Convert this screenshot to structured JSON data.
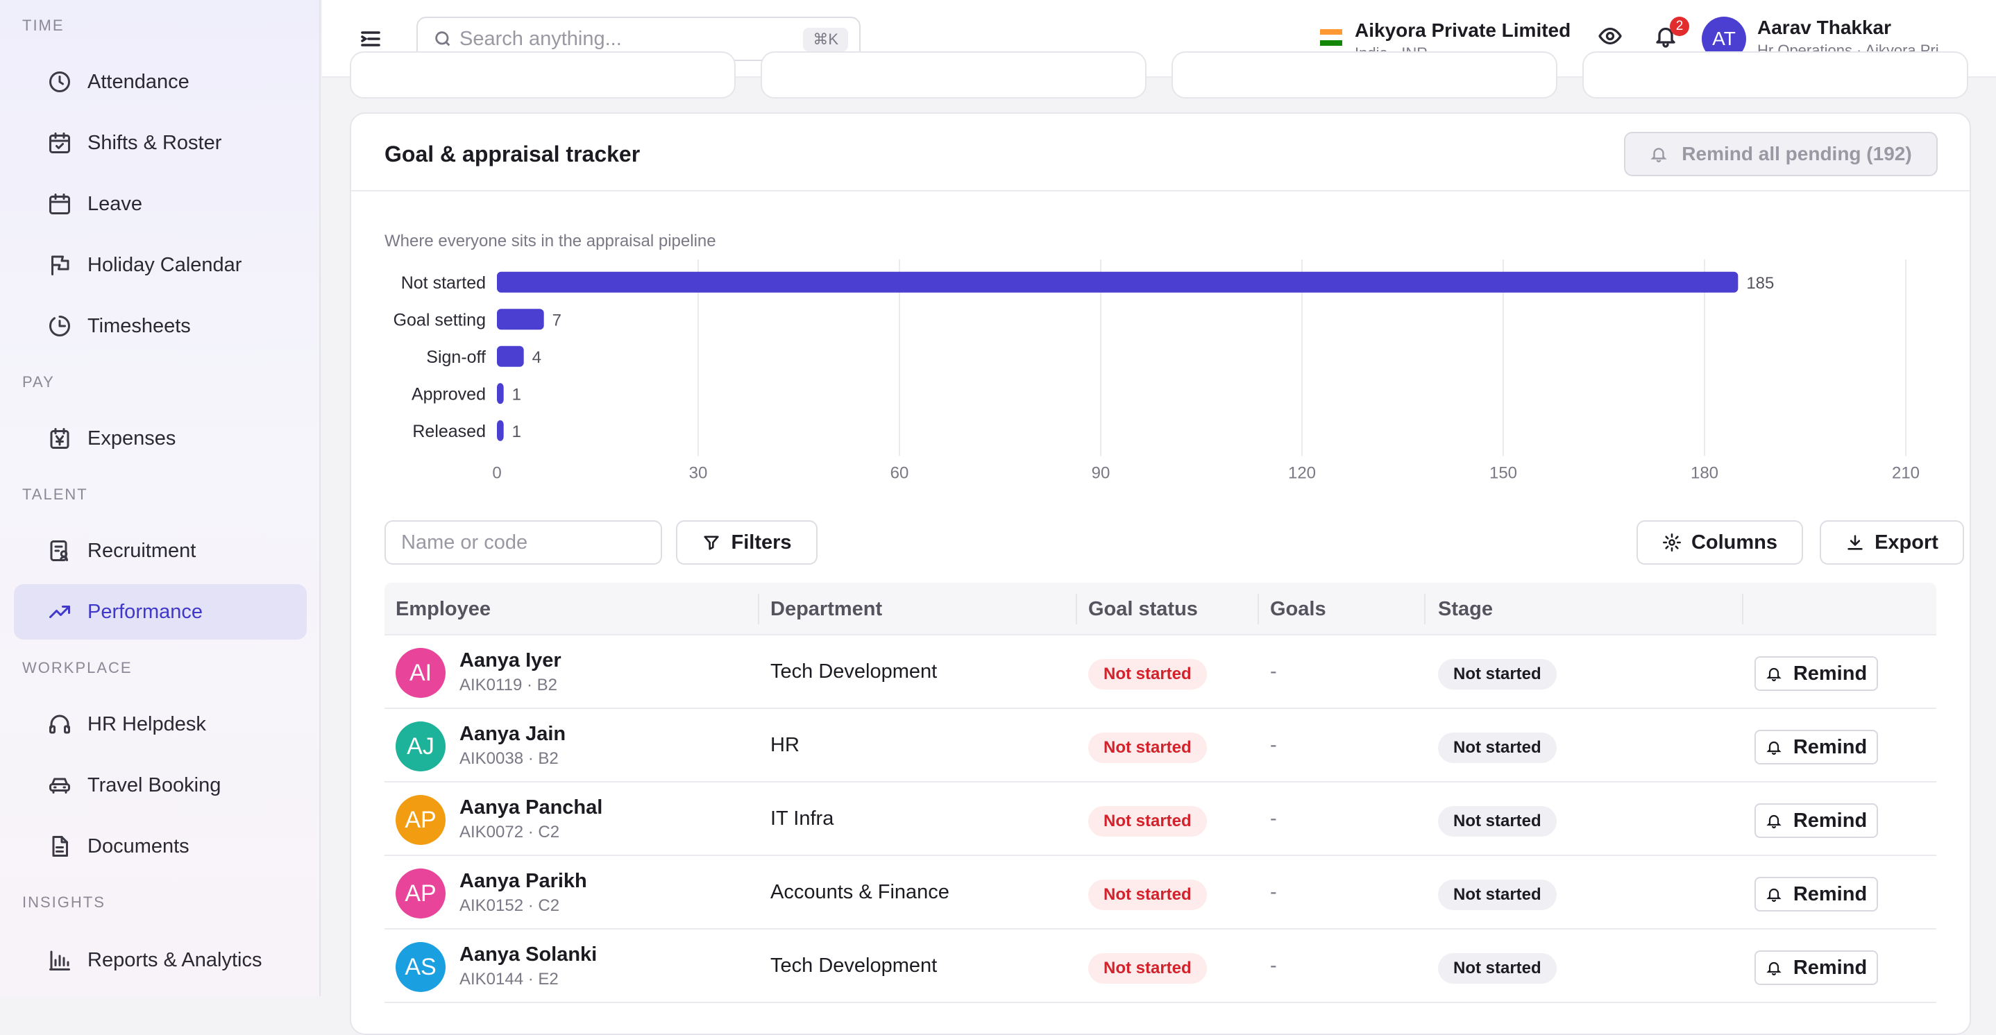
{
  "sidebar": {
    "sections": [
      {
        "label": "TIME"
      },
      {
        "label": "PAY"
      },
      {
        "label": "TALENT"
      },
      {
        "label": "WORKPLACE"
      },
      {
        "label": "INSIGHTS"
      }
    ],
    "items": [
      {
        "label": "Attendance",
        "icon": "clock-icon"
      },
      {
        "label": "Shifts & Roster",
        "icon": "calendar-check-icon"
      },
      {
        "label": "Leave",
        "icon": "calendar-icon"
      },
      {
        "label": "Holiday Calendar",
        "icon": "flag-icon"
      },
      {
        "label": "Timesheets",
        "icon": "timer-icon"
      },
      {
        "label": "Expenses",
        "icon": "receipt-icon"
      },
      {
        "label": "Recruitment",
        "icon": "clipboard-user-icon"
      },
      {
        "label": "Performance",
        "icon": "trending-up-icon",
        "active": true
      },
      {
        "label": "HR Helpdesk",
        "icon": "headset-icon"
      },
      {
        "label": "Travel Booking",
        "icon": "car-icon"
      },
      {
        "label": "Documents",
        "icon": "document-icon"
      },
      {
        "label": "Reports & Analytics",
        "icon": "bar-chart-icon"
      }
    ]
  },
  "header": {
    "search_placeholder": "Search anything...",
    "search_shortcut": "⌘K",
    "company_name": "Aikyora Private Limited",
    "company_sub": "India · INR",
    "notification_count": "2",
    "user_initials": "AT",
    "user_name": "Aarav Thakkar",
    "user_sub": "Hr Operations · Aikyora Pri..."
  },
  "panel": {
    "title": "Goal & appraisal tracker",
    "remind_all_label": "Remind all pending (192)",
    "chart_caption": "Where everyone sits in the appraisal pipeline",
    "name_placeholder": "Name or code",
    "filters_label": "Filters",
    "columns_label": "Columns",
    "export_label": "Export"
  },
  "colors": {
    "accent": "#4a3fd0",
    "bar": "#4a3fd0"
  },
  "chart_data": {
    "type": "bar",
    "orientation": "horizontal",
    "categories": [
      "Not started",
      "Goal setting",
      "Sign-off",
      "Approved",
      "Released"
    ],
    "values": [
      185,
      7,
      4,
      1,
      1
    ],
    "xlim": [
      0,
      210
    ],
    "xticks": [
      0,
      30,
      60,
      90,
      120,
      150,
      180,
      210
    ],
    "grid": true
  },
  "table": {
    "headers": [
      "Employee",
      "Department",
      "Goal status",
      "Goals",
      "Stage"
    ],
    "rows": [
      {
        "initials": "AI",
        "avatar_color": "#e8449a",
        "name": "Aanya Iyer",
        "code": "AIK0119 · B2",
        "department": "Tech Development",
        "goal_status": "Not started",
        "goals": "-",
        "stage": "Not started",
        "action": "Remind"
      },
      {
        "initials": "AJ",
        "avatar_color": "#1cb39a",
        "name": "Aanya Jain",
        "code": "AIK0038 · B2",
        "department": "HR",
        "goal_status": "Not started",
        "goals": "-",
        "stage": "Not started",
        "action": "Remind"
      },
      {
        "initials": "AP",
        "avatar_color": "#f29c12",
        "name": "Aanya Panchal",
        "code": "AIK0072 · C2",
        "department": "IT Infra",
        "goal_status": "Not started",
        "goals": "-",
        "stage": "Not started",
        "action": "Remind"
      },
      {
        "initials": "AP",
        "avatar_color": "#e8449a",
        "name": "Aanya Parikh",
        "code": "AIK0152 · C2",
        "department": "Accounts & Finance",
        "goal_status": "Not started",
        "goals": "-",
        "stage": "Not started",
        "action": "Remind"
      },
      {
        "initials": "AS",
        "avatar_color": "#1aa0e0",
        "name": "Aanya Solanki",
        "code": "AIK0144 · E2",
        "department": "Tech Development",
        "goal_status": "Not started",
        "goals": "-",
        "stage": "Not started",
        "action": "Remind"
      }
    ]
  }
}
